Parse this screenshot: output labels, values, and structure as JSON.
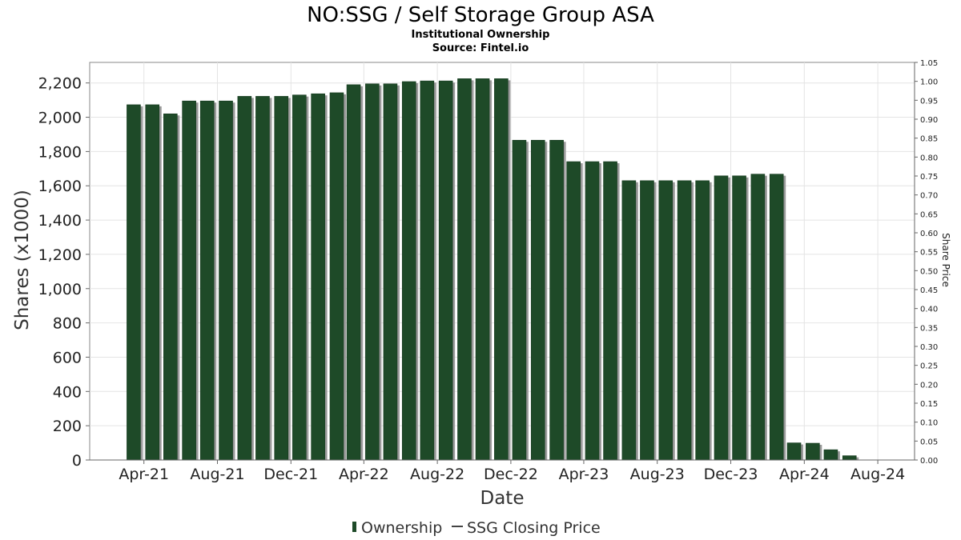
{
  "chart_data": {
    "type": "bar",
    "title": "NO:SSG / Self Storage Group ASA",
    "subtitles": [
      "Institutional Ownership",
      "Source: Fintel.io"
    ],
    "xlabel": "Date",
    "ylabel": "Shares (x1000)",
    "y2label": "Share Price",
    "ylim": [
      0,
      2320
    ],
    "y2lim": [
      0,
      1.05
    ],
    "yticks": [
      0,
      200,
      400,
      600,
      800,
      1000,
      1200,
      1400,
      1600,
      1800,
      2000,
      2200
    ],
    "yticks_labels": [
      "0",
      "200",
      "400",
      "600",
      "800",
      "1,000",
      "1,200",
      "1,400",
      "1,600",
      "1,800",
      "2,000",
      "2,200"
    ],
    "y2ticks_labels": [
      "0.00",
      "0.05",
      "0.10",
      "0.15",
      "0.20",
      "0.25",
      "0.30",
      "0.35",
      "0.40",
      "0.45",
      "0.50",
      "0.55",
      "0.60",
      "0.65",
      "0.70",
      "0.75",
      "0.80",
      "0.85",
      "0.90",
      "0.95",
      "1.00",
      "1.05"
    ],
    "xlim": [
      "2021-01-01",
      "2024-10-01"
    ],
    "xticks": [
      {
        "label": "Apr-21",
        "date": "2021-04-01"
      },
      {
        "label": "Aug-21",
        "date": "2021-08-01"
      },
      {
        "label": "Dec-21",
        "date": "2021-12-01"
      },
      {
        "label": "Apr-22",
        "date": "2022-04-01"
      },
      {
        "label": "Aug-22",
        "date": "2022-08-01"
      },
      {
        "label": "Dec-22",
        "date": "2022-12-01"
      },
      {
        "label": "Apr-23",
        "date": "2023-04-01"
      },
      {
        "label": "Aug-23",
        "date": "2023-08-01"
      },
      {
        "label": "Dec-23",
        "date": "2023-12-01"
      },
      {
        "label": "Apr-24",
        "date": "2024-04-01"
      },
      {
        "label": "Aug-24",
        "date": "2024-08-01"
      }
    ],
    "grid": true,
    "legend": "bottom-center",
    "series": [
      {
        "name": "Ownership",
        "color": "#1e4a28",
        "x": [
          "2021-03-15",
          "2021-04-15",
          "2021-05-15",
          "2021-06-15",
          "2021-07-15",
          "2021-08-15",
          "2021-09-15",
          "2021-10-15",
          "2021-11-15",
          "2021-12-15",
          "2022-01-15",
          "2022-02-15",
          "2022-03-15",
          "2022-04-15",
          "2022-05-15",
          "2022-06-15",
          "2022-07-15",
          "2022-08-15",
          "2022-09-15",
          "2022-10-15",
          "2022-11-15",
          "2022-12-15",
          "2023-01-15",
          "2023-02-15",
          "2023-03-15",
          "2023-04-15",
          "2023-05-15",
          "2023-06-15",
          "2023-07-15",
          "2023-08-15",
          "2023-09-15",
          "2023-10-15",
          "2023-11-15",
          "2023-12-15",
          "2024-01-15",
          "2024-02-15",
          "2024-03-15",
          "2024-04-15",
          "2024-05-15",
          "2024-06-15",
          "2024-07-15"
        ],
        "values": [
          2073,
          2073,
          2020,
          2095,
          2095,
          2095,
          2122,
          2122,
          2122,
          2130,
          2137,
          2143,
          2190,
          2195,
          2195,
          2208,
          2212,
          2212,
          2225,
          2225,
          2225,
          1866,
          1866,
          1866,
          1741,
          1741,
          1741,
          1630,
          1630,
          1630,
          1630,
          1630,
          1658,
          1658,
          1668,
          1668,
          100,
          98,
          60,
          25,
          0
        ]
      },
      {
        "name": "SSG Closing Price",
        "color": "#444444",
        "x": [],
        "values": []
      }
    ]
  }
}
